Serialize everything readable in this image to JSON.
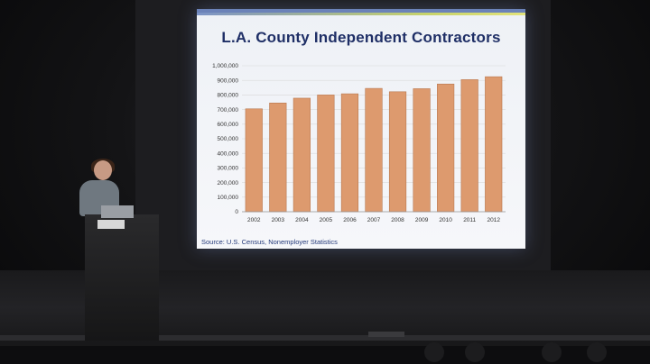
{
  "slide": {
    "title": "L.A. County Independent Contractors",
    "source": "Source: U.S. Census, Nonemployer Statistics"
  },
  "colors": {
    "bar_fill": "#dd9a6e",
    "bar_stroke": "#b8784f",
    "title": "#1f2f66",
    "gridline": "#d9d9d9"
  },
  "chart_data": {
    "type": "bar",
    "title": "L.A. County Independent Contractors",
    "xlabel": "",
    "ylabel": "",
    "categories": [
      "2002",
      "2003",
      "2004",
      "2005",
      "2006",
      "2007",
      "2008",
      "2009",
      "2010",
      "2011",
      "2012"
    ],
    "values": [
      705000,
      745000,
      778000,
      800000,
      808000,
      845000,
      822000,
      843000,
      875000,
      905000,
      925000
    ],
    "ylim": [
      0,
      1000000
    ],
    "yticks": [
      0,
      100000,
      200000,
      300000,
      400000,
      500000,
      600000,
      700000,
      800000,
      900000,
      1000000
    ],
    "ytick_labels": [
      "0",
      "100,000",
      "200,000",
      "300,000",
      "400,000",
      "500,000",
      "600,000",
      "700,000",
      "800,000",
      "900,000",
      "1,000,000"
    ],
    "grid": true,
    "legend": "none"
  }
}
